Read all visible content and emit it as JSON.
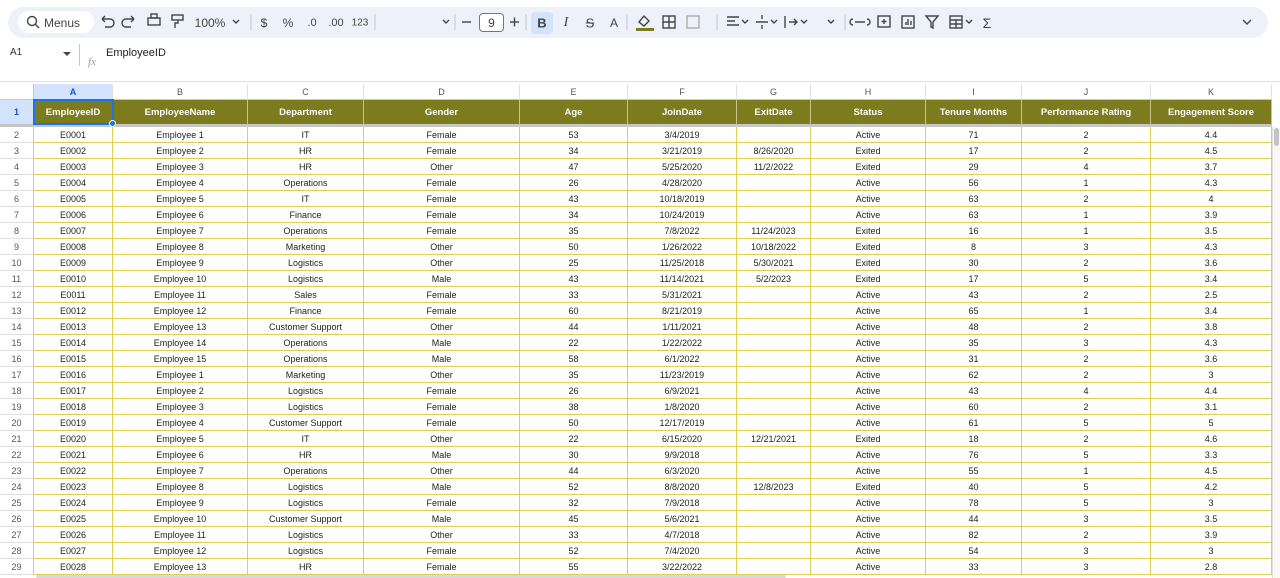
{
  "toolbar": {
    "items": [
      "Menus",
      "100%",
      "$",
      "%",
      ".0",
      ".00",
      "123",
      "9",
      "B",
      "I",
      "S",
      "A",
      "Σ"
    ]
  },
  "formula_bar": {
    "cell_ref": "A1",
    "fx": "fx",
    "content": "EmployeeID"
  },
  "sheet": {
    "column_letters": [
      "A",
      "B",
      "C",
      "D",
      "E",
      "F",
      "G",
      "H",
      "I",
      "J",
      "K"
    ],
    "row_numbers": [
      1,
      2,
      3,
      4,
      5,
      6,
      7,
      8,
      9,
      10,
      11,
      12,
      13,
      14,
      15,
      16,
      17,
      18,
      19,
      20,
      21,
      22,
      23,
      24,
      25,
      26,
      27,
      28,
      29
    ],
    "header": [
      "EmployeeID",
      "EmployeeName",
      "Department",
      "Gender",
      "Age",
      "JoinDate",
      "ExitDate",
      "Status",
      "Tenure Months",
      "Performance Rating",
      "Engagement Score"
    ],
    "rows": [
      [
        "E0001",
        "Employee 1",
        "IT",
        "Female",
        53,
        "3/4/2019",
        null,
        "Active",
        71,
        2,
        4.4
      ],
      [
        "E0002",
        "Employee 2",
        "HR",
        "Female",
        34,
        "3/21/2019",
        "8/26/2020",
        "Exited",
        17,
        2,
        4.5
      ],
      [
        "E0003",
        "Employee 3",
        "HR",
        "Other",
        47,
        "5/25/2020",
        "11/2/2022",
        "Exited",
        29,
        4,
        3.7
      ],
      [
        "E0004",
        "Employee 4",
        "Operations",
        "Female",
        26,
        "4/28/2020",
        null,
        "Active",
        56,
        1,
        4.3
      ],
      [
        "E0005",
        "Employee 5",
        "IT",
        "Female",
        43,
        "10/18/2019",
        null,
        "Active",
        63,
        2,
        4
      ],
      [
        "E0006",
        "Employee 6",
        "Finance",
        "Female",
        34,
        "10/24/2019",
        null,
        "Active",
        63,
        1,
        3.9
      ],
      [
        "E0007",
        "Employee 7",
        "Operations",
        "Female",
        35,
        "7/8/2022",
        "11/24/2023",
        "Exited",
        16,
        1,
        3.5
      ],
      [
        "E0008",
        "Employee 8",
        "Marketing",
        "Other",
        50,
        "1/26/2022",
        "10/18/2022",
        "Exited",
        8,
        3,
        4.3
      ],
      [
        "E0009",
        "Employee 9",
        "Logistics",
        "Other",
        25,
        "11/25/2018",
        "5/30/2021",
        "Exited",
        30,
        2,
        3.6
      ],
      [
        "E0010",
        "Employee 10",
        "Logistics",
        "Male",
        43,
        "11/14/2021",
        "5/2/2023",
        "Exited",
        17,
        5,
        3.4
      ],
      [
        "E0011",
        "Employee 11",
        "Sales",
        "Female",
        33,
        "5/31/2021",
        null,
        "Active",
        43,
        2,
        2.5
      ],
      [
        "E0012",
        "Employee 12",
        "Finance",
        "Female",
        60,
        "8/21/2019",
        null,
        "Active",
        65,
        1,
        3.4
      ],
      [
        "E0013",
        "Employee 13",
        "Customer Support",
        "Other",
        44,
        "1/11/2021",
        null,
        "Active",
        48,
        2,
        3.8
      ],
      [
        "E0014",
        "Employee 14",
        "Operations",
        "Male",
        22,
        "1/22/2022",
        null,
        "Active",
        35,
        3,
        4.3
      ],
      [
        "E0015",
        "Employee 15",
        "Operations",
        "Male",
        58,
        "6/1/2022",
        null,
        "Active",
        31,
        2,
        3.6
      ],
      [
        "E0016",
        "Employee 1",
        "Marketing",
        "Other",
        35,
        "11/23/2019",
        null,
        "Active",
        62,
        2,
        3
      ],
      [
        "E0017",
        "Employee 2",
        "Logistics",
        "Female",
        26,
        "6/9/2021",
        null,
        "Active",
        43,
        4,
        4.4
      ],
      [
        "E0018",
        "Employee 3",
        "Logistics",
        "Female",
        38,
        "1/8/2020",
        null,
        "Active",
        60,
        2,
        3.1
      ],
      [
        "E0019",
        "Employee 4",
        "Customer Support",
        "Female",
        50,
        "12/17/2019",
        null,
        "Active",
        61,
        5,
        5
      ],
      [
        "E0020",
        "Employee 5",
        "IT",
        "Other",
        22,
        "6/15/2020",
        "12/21/2021",
        "Exited",
        18,
        2,
        4.6
      ],
      [
        "E0021",
        "Employee 6",
        "HR",
        "Male",
        30,
        "9/9/2018",
        null,
        "Active",
        76,
        5,
        3.3
      ],
      [
        "E0022",
        "Employee 7",
        "Operations",
        "Other",
        44,
        "6/3/2020",
        null,
        "Active",
        55,
        1,
        4.5
      ],
      [
        "E0023",
        "Employee 8",
        "Logistics",
        "Male",
        52,
        "8/8/2020",
        "12/8/2023",
        "Exited",
        40,
        5,
        4.2
      ],
      [
        "E0024",
        "Employee 9",
        "Logistics",
        "Female",
        32,
        "7/9/2018",
        null,
        "Active",
        78,
        5,
        3
      ],
      [
        "E0025",
        "Employee 10",
        "Customer Support",
        "Male",
        45,
        "5/6/2021",
        null,
        "Active",
        44,
        3,
        3.5
      ],
      [
        "E0026",
        "Employee 11",
        "Logistics",
        "Other",
        33,
        "4/7/2018",
        null,
        "Active",
        82,
        2,
        3.9
      ],
      [
        "E0027",
        "Employee 12",
        "Logistics",
        "Female",
        52,
        "7/4/2020",
        null,
        "Active",
        54,
        3,
        3
      ],
      [
        "E0028",
        "Employee 13",
        "HR",
        "Female",
        55,
        "3/22/2022",
        null,
        "Active",
        33,
        3,
        2.8
      ]
    ]
  }
}
